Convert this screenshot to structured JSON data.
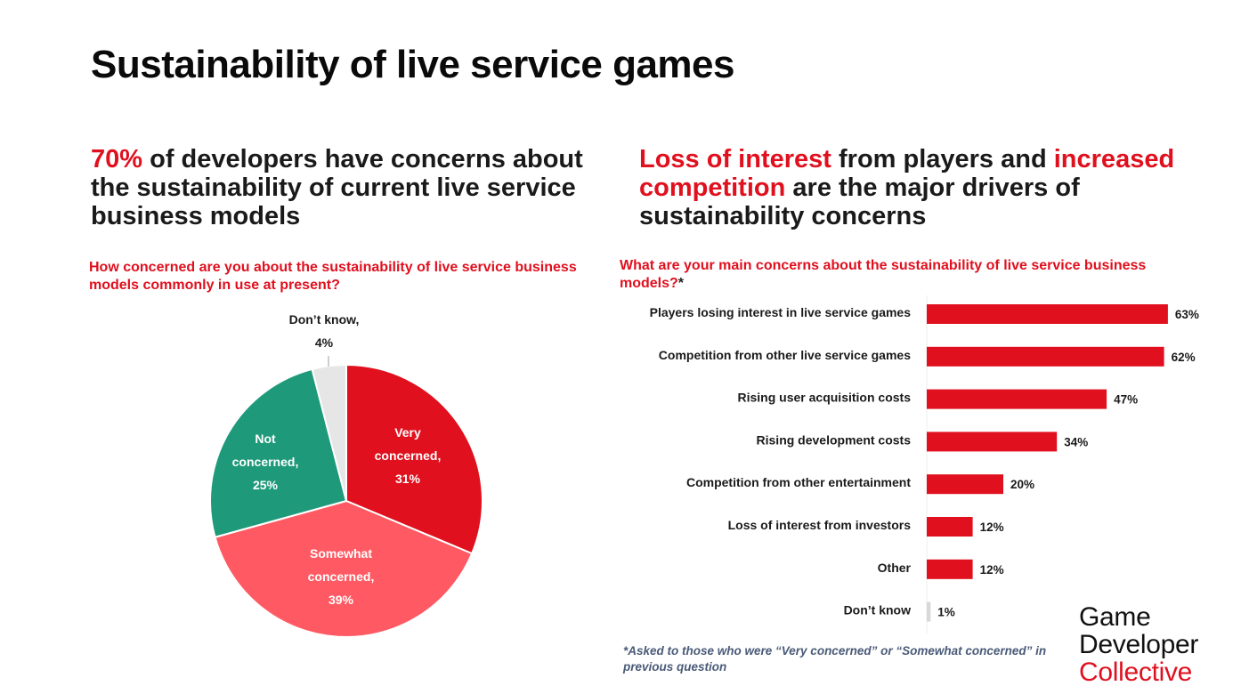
{
  "title": "Sustainability of live service games",
  "left": {
    "headline_highlight": "70%",
    "headline_rest": " of developers have concerns about the sustainability of current live service business models",
    "question": "How concerned are you about the sustainability of live service business models commonly in use at present?"
  },
  "right": {
    "headline_red1": "Loss of interest",
    "headline_mid": " from players and ",
    "headline_red2": "increased competition",
    "headline_rest": " are the major drivers of sustainability concerns",
    "question": "What are your main concerns about the sustainability of live service business models?",
    "question_mark": "*"
  },
  "footnote": "*Asked to those who were “Very concerned” or “Somewhat concerned” in previous question",
  "logo": {
    "line1": "Game",
    "line2": "Developer",
    "line3": "Collective"
  },
  "colors": {
    "red": "#e0101e",
    "pink": "#ff5a63",
    "green": "#1e9a7a",
    "gray": "#e6e6e6",
    "bar": "#e0101e"
  },
  "chart_data": [
    {
      "type": "pie",
      "title": "How concerned are you about the sustainability of live service business models commonly in use at present?",
      "slices": [
        {
          "label": [
            "Very",
            "concerned,"
          ],
          "value_label": "31%",
          "value": 31,
          "color": "#e0101e"
        },
        {
          "label": [
            "Somewhat",
            "concerned,"
          ],
          "value_label": "39%",
          "value": 39,
          "color": "#ff5a63"
        },
        {
          "label": [
            "Not",
            "concerned,"
          ],
          "value_label": "25%",
          "value": 25,
          "color": "#1e9a7a"
        },
        {
          "label": [
            "Don’t know,"
          ],
          "value_label": "4%",
          "value": 4,
          "color": "#e6e6e6"
        }
      ]
    },
    {
      "type": "bar",
      "orientation": "horizontal",
      "title": "What are your main concerns about the sustainability of live service business models?*",
      "categories": [
        "Players losing interest in live service games",
        "Competition from other live service games",
        "Rising user acquisition costs",
        "Rising development costs",
        "Competition from other entertainment",
        "Loss of interest from investors",
        "Other",
        "Don’t know"
      ],
      "values": [
        63,
        62,
        47,
        34,
        20,
        12,
        12,
        1
      ],
      "value_labels": [
        "63%",
        "62%",
        "47%",
        "34%",
        "20%",
        "12%",
        "12%",
        "1%"
      ],
      "color": "#e0101e"
    }
  ]
}
